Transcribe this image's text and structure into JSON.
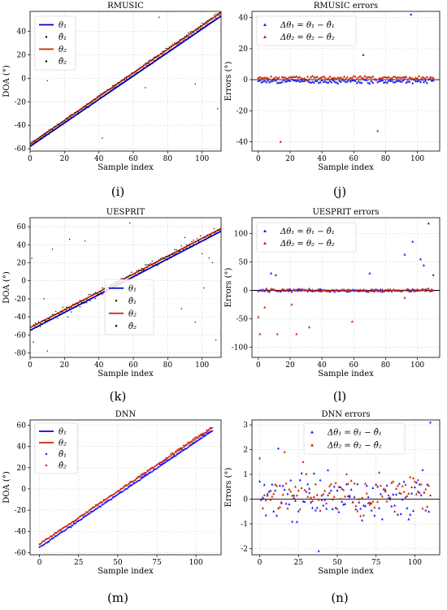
{
  "figure": {
    "panels": [
      {
        "letter": "(i)",
        "title": "RMUSIC",
        "xlabel": "Sample index",
        "ylabel": "DOA (°)"
      },
      {
        "letter": "(j)",
        "title": "RMUSIC errors",
        "xlabel": "Sample index",
        "ylabel": "Errors (°)"
      },
      {
        "letter": "(k)",
        "title": "UESPRIT",
        "xlabel": "Sample index",
        "ylabel": "DOA (°)"
      },
      {
        "letter": "(l)",
        "title": "UESPRIT errors",
        "xlabel": "Sample index",
        "ylabel": "Errors (°)"
      },
      {
        "letter": "(m)",
        "title": "DNN",
        "xlabel": "Sample index",
        "ylabel": "DOA (°)"
      },
      {
        "letter": "(n)",
        "title": "DNN errors",
        "xlabel": "Sample index",
        "ylabel": "Errors (°)"
      }
    ]
  },
  "chart_data": [
    {
      "type": "line",
      "title": "RMUSIC",
      "xlabel": "Sample index",
      "ylabel": "DOA (°)",
      "xlim": [
        0,
        111
      ],
      "ylim": [
        -62,
        57
      ],
      "xticks": [
        0,
        20,
        40,
        60,
        80,
        100
      ],
      "yticks": [
        -60,
        -40,
        -20,
        0,
        20,
        40
      ],
      "grid": true,
      "legend": "top-left",
      "series": [
        {
          "name": "θ₁",
          "kind": "line",
          "color": "#0000cc",
          "x": [
            0,
            111
          ],
          "y": [
            -58,
            53
          ]
        },
        {
          "name": "θ̂₁",
          "kind": "dots",
          "color": "#000000",
          "x0": 0,
          "x1": 111,
          "y0": -58,
          "y1": 53,
          "noise": 0.8,
          "outliers": [
            [
              10,
              -2
            ],
            [
              42,
              -51
            ],
            [
              67,
              -8
            ],
            [
              96,
              -5
            ],
            [
              109,
              -26
            ]
          ]
        },
        {
          "name": "θ₂",
          "kind": "line",
          "color": "#cc2200",
          "x": [
            0,
            111
          ],
          "y": [
            -56,
            56
          ]
        },
        {
          "name": "θ̂₂",
          "kind": "dots",
          "color": "#000000",
          "x0": 0,
          "x1": 111,
          "y0": -56,
          "y1": 56,
          "noise": 0.8,
          "outliers": [
            [
              75,
              52
            ]
          ]
        }
      ]
    },
    {
      "type": "scatter",
      "title": "RMUSIC errors",
      "xlabel": "Sample index",
      "ylabel": "Errors (°)",
      "xlim": [
        -4,
        114
      ],
      "ylim": [
        -46,
        44
      ],
      "xticks": [
        0,
        20,
        40,
        60,
        80,
        100
      ],
      "yticks": [
        -40,
        -20,
        0,
        20,
        40
      ],
      "grid": true,
      "legend": "top-left",
      "zero_line": true,
      "series": [
        {
          "name": "Δθ₁ = θ₁ − θ̂₁",
          "color": "#1a1aff",
          "n": 111,
          "mean": -1,
          "noise": 1,
          "outliers": [
            [
              66,
              16
            ],
            [
              96,
              42
            ]
          ]
        },
        {
          "name": "Δθ₂ = θ₂ − θ̂₂",
          "color": "#cc2200",
          "n": 111,
          "mean": 1.2,
          "noise": 1,
          "outliers": [
            [
              14,
              -40
            ],
            [
              75,
              -33
            ]
          ]
        }
      ]
    },
    {
      "type": "line",
      "title": "UESPRIT",
      "xlabel": "Sample index",
      "ylabel": "DOA (°)",
      "xlim": [
        0,
        111
      ],
      "ylim": [
        -85,
        70
      ],
      "xticks": [
        0,
        20,
        40,
        60,
        80,
        100
      ],
      "yticks": [
        -80,
        -60,
        -40,
        -20,
        0,
        20,
        40,
        60
      ],
      "grid": true,
      "legend": "bottom-right",
      "series": [
        {
          "name": "θ₁",
          "kind": "line",
          "color": "#0000cc",
          "x": [
            0,
            111
          ],
          "y": [
            -55,
            55
          ]
        },
        {
          "name": "θ̂₁",
          "kind": "dots",
          "color": "#000000",
          "x0": 0,
          "x1": 111,
          "y0": -55,
          "y1": 55,
          "noise": 2.5,
          "outliers": [
            [
              2,
              -68
            ],
            [
              8,
              -20
            ],
            [
              13,
              35
            ],
            [
              22,
              -40
            ],
            [
              58,
              64
            ],
            [
              70,
              -5
            ],
            [
              88,
              -31
            ],
            [
              96,
              -46
            ],
            [
              101,
              -8
            ],
            [
              104,
              25
            ],
            [
              108,
              -66
            ]
          ]
        },
        {
          "name": "θ₂",
          "kind": "line",
          "color": "#cc2200",
          "x": [
            0,
            111
          ],
          "y": [
            -52,
            58
          ]
        },
        {
          "name": "θ̂₂",
          "kind": "dots",
          "color": "#000000",
          "x0": 0,
          "x1": 111,
          "y0": -52,
          "y1": 58,
          "noise": 2.5,
          "outliers": [
            [
              1,
              25
            ],
            [
              10,
              -78
            ],
            [
              23,
              46
            ],
            [
              32,
              44
            ],
            [
              60,
              5
            ],
            [
              90,
              48
            ],
            [
              100,
              30
            ],
            [
              106,
              20
            ]
          ]
        }
      ]
    },
    {
      "type": "scatter",
      "title": "UESPRIT errors",
      "xlabel": "Sample index",
      "ylabel": "Errors (°)",
      "xlim": [
        -4,
        114
      ],
      "ylim": [
        -118,
        128
      ],
      "xticks": [
        0,
        20,
        40,
        60,
        80,
        100
      ],
      "yticks": [
        -100,
        -50,
        0,
        50,
        100
      ],
      "grid": true,
      "legend": "top-left",
      "zero_line": true,
      "series": [
        {
          "name": "Δθ₁ = θ₁ − θ̂₁",
          "color": "#1a1aff",
          "n": 111,
          "mean": 0,
          "noise": 2,
          "outliers": [
            [
              8,
              30
            ],
            [
              11,
              27
            ],
            [
              70,
              30
            ],
            [
              92,
              63
            ],
            [
              97,
              86
            ],
            [
              102,
              55
            ],
            [
              104,
              44
            ],
            [
              107,
              118
            ],
            [
              110,
              27
            ]
          ]
        },
        {
          "name": "Δθ₂ = θ₂ − θ̂₂",
          "color": "#cc2200",
          "n": 111,
          "mean": 0,
          "noise": 2,
          "outliers": [
            [
              0,
              -47
            ],
            [
              1,
              -77
            ],
            [
              4,
              -30
            ],
            [
              12,
              -77
            ],
            [
              21,
              -25
            ],
            [
              24,
              -77
            ],
            [
              32,
              -65
            ],
            [
              59,
              -55
            ],
            [
              92,
              -13
            ]
          ]
        }
      ]
    },
    {
      "type": "line",
      "title": "DNN",
      "xlabel": "Sample index",
      "ylabel": "DOA (°)",
      "xlim": [
        -6,
        116
      ],
      "ylim": [
        -62,
        65
      ],
      "xticks": [
        0,
        25,
        50,
        75,
        100
      ],
      "yticks": [
        -60,
        -40,
        -20,
        0,
        20,
        40,
        60
      ],
      "grid": true,
      "legend": "top-left",
      "series": [
        {
          "name": "θ₁",
          "kind": "line",
          "color": "#0000ee",
          "x": [
            0,
            111
          ],
          "y": [
            -55,
            55
          ]
        },
        {
          "name": "θ₂",
          "kind": "line",
          "color": "#cc2200",
          "x": [
            0,
            111
          ],
          "y": [
            -52,
            58
          ]
        },
        {
          "name": "θ̂₁",
          "kind": "dots",
          "color": "#1a1aff",
          "x0": 0,
          "x1": 111,
          "y0": -55,
          "y1": 55,
          "noise": 0.8,
          "outliers": []
        },
        {
          "name": "θ̂₂",
          "kind": "dots",
          "color": "#cc2200",
          "x0": 0,
          "x1": 111,
          "y0": -52,
          "y1": 58,
          "noise": 0.8,
          "outliers": []
        }
      ]
    },
    {
      "type": "scatter",
      "title": "DNN errors",
      "xlabel": "Sample index",
      "ylabel": "Errors (°)",
      "xlim": [
        -5,
        116
      ],
      "ylim": [
        -2.25,
        3.2
      ],
      "xticks": [
        0,
        25,
        50,
        75,
        100
      ],
      "yticks": [
        -2,
        -1,
        0,
        1,
        2,
        3
      ],
      "grid": true,
      "legend": "top-center",
      "zero_line": true,
      "series": [
        {
          "name": "Δθ₁ = θ₁ − θ̂₁",
          "color": "#1a1aff",
          "n": 111,
          "mean": 0,
          "noise": 0.75,
          "outliers": [
            [
              12,
              2.05
            ],
            [
              38,
              -2.1
            ],
            [
              110,
              3.1
            ]
          ]
        },
        {
          "name": "Δθ₂ = θ₂ − θ̂₂",
          "color": "#cc2200",
          "n": 111,
          "mean": 0.2,
          "noise": 0.7,
          "outliers": [
            [
              0,
              1.65
            ],
            [
              16,
              1.9
            ],
            [
              28,
              1.5
            ],
            [
              111,
              3.0
            ]
          ]
        }
      ]
    }
  ]
}
